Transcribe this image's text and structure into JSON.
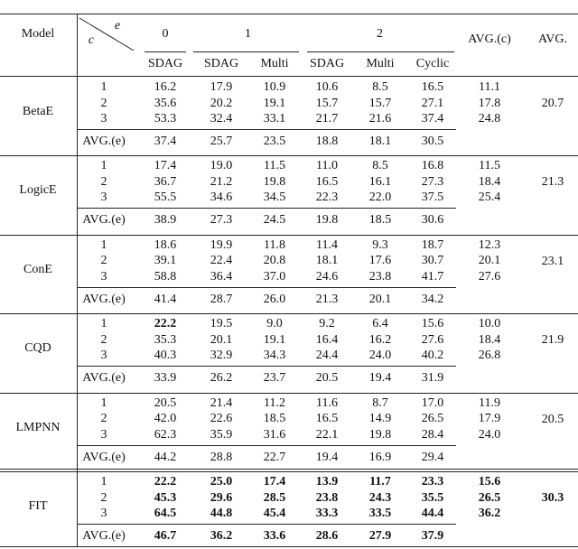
{
  "header": {
    "model": "Model",
    "e": "e",
    "c": "c",
    "groups": [
      {
        "label": "0",
        "cols": [
          "SDAG"
        ]
      },
      {
        "label": "1",
        "cols": [
          "SDAG",
          "Multi"
        ]
      },
      {
        "label": "2",
        "cols": [
          "SDAG",
          "Multi",
          "Cyclic"
        ]
      }
    ],
    "avg_c": "AVG.(c)",
    "avg": "AVG."
  },
  "models": [
    {
      "name": "BetaE",
      "bold": false,
      "rows": [
        {
          "c": "1",
          "values": [
            "16.2",
            "17.9",
            "10.9",
            "10.6",
            "8.5",
            "16.5"
          ],
          "avg_c": "11.1"
        },
        {
          "c": "2",
          "values": [
            "35.6",
            "20.2",
            "19.1",
            "15.7",
            "15.7",
            "27.1"
          ],
          "avg_c": "17.8"
        },
        {
          "c": "3",
          "values": [
            "53.3",
            "32.4",
            "33.1",
            "21.7",
            "21.6",
            "37.4"
          ],
          "avg_c": "24.8"
        }
      ],
      "avg_e_label": "AVG.(e)",
      "avg_e": [
        "37.4",
        "25.7",
        "23.5",
        "18.8",
        "18.1",
        "30.5"
      ],
      "avg": "20.7"
    },
    {
      "name": "LogicE",
      "bold": false,
      "rows": [
        {
          "c": "1",
          "values": [
            "17.4",
            "19.0",
            "11.5",
            "11.0",
            "8.5",
            "16.8"
          ],
          "avg_c": "11.5"
        },
        {
          "c": "2",
          "values": [
            "36.7",
            "21.2",
            "19.8",
            "16.5",
            "16.1",
            "27.3"
          ],
          "avg_c": "18.4"
        },
        {
          "c": "3",
          "values": [
            "55.5",
            "34.6",
            "34.5",
            "22.3",
            "22.0",
            "37.5"
          ],
          "avg_c": "25.4"
        }
      ],
      "avg_e_label": "AVG.(e)",
      "avg_e": [
        "38.9",
        "27.3",
        "24.5",
        "19.8",
        "18.5",
        "30.6"
      ],
      "avg": "21.3"
    },
    {
      "name": "ConE",
      "bold": false,
      "rows": [
        {
          "c": "1",
          "values": [
            "18.6",
            "19.9",
            "11.8",
            "11.4",
            "9.3",
            "18.7"
          ],
          "avg_c": "12.3"
        },
        {
          "c": "2",
          "values": [
            "39.1",
            "22.4",
            "20.8",
            "18.1",
            "17.6",
            "30.7"
          ],
          "avg_c": "20.1"
        },
        {
          "c": "3",
          "values": [
            "58.8",
            "36.4",
            "37.0",
            "24.6",
            "23.8",
            "41.7"
          ],
          "avg_c": "27.6"
        }
      ],
      "avg_e_label": "AVG.(e)",
      "avg_e": [
        "41.4",
        "28.7",
        "26.0",
        "21.3",
        "20.1",
        "34.2"
      ],
      "avg": "23.1"
    },
    {
      "name": "CQD",
      "bold": false,
      "rows": [
        {
          "c": "1",
          "values": [
            {
              "text": "22.2",
              "bold": true
            },
            "19.5",
            "9.0",
            "9.2",
            "6.4",
            "15.6"
          ],
          "avg_c": "10.0"
        },
        {
          "c": "2",
          "values": [
            "35.3",
            "20.1",
            "19.1",
            "16.4",
            "16.2",
            "27.6"
          ],
          "avg_c": "18.4"
        },
        {
          "c": "3",
          "values": [
            "40.3",
            "32.9",
            "34.3",
            "24.4",
            "24.0",
            "40.2"
          ],
          "avg_c": "26.8"
        }
      ],
      "avg_e_label": "AVG.(e)",
      "avg_e": [
        "33.9",
        "26.2",
        "23.7",
        "20.5",
        "19.4",
        "31.9"
      ],
      "avg": "21.9"
    },
    {
      "name": "LMPNN",
      "bold": false,
      "rows": [
        {
          "c": "1",
          "values": [
            "20.5",
            "21.4",
            "11.2",
            "11.6",
            "8.7",
            "17.0"
          ],
          "avg_c": "11.9"
        },
        {
          "c": "2",
          "values": [
            "42.0",
            "22.6",
            "18.5",
            "16.5",
            "14.9",
            "26.5"
          ],
          "avg_c": "17.9"
        },
        {
          "c": "3",
          "values": [
            "62.3",
            "35.9",
            "31.6",
            "22.1",
            "19.8",
            "28.4"
          ],
          "avg_c": "24.0"
        }
      ],
      "avg_e_label": "AVG.(e)",
      "avg_e": [
        "44.2",
        "28.8",
        "22.7",
        "19.4",
        "16.9",
        "29.4"
      ],
      "avg": "20.5"
    },
    {
      "name": "FIT",
      "bold": true,
      "rows": [
        {
          "c": "1",
          "values": [
            "22.2",
            "25.0",
            "17.4",
            "13.9",
            "11.7",
            "23.3"
          ],
          "avg_c": "15.6"
        },
        {
          "c": "2",
          "values": [
            "45.3",
            "29.6",
            "28.5",
            "23.8",
            "24.3",
            "35.5"
          ],
          "avg_c": "26.5"
        },
        {
          "c": "3",
          "values": [
            "64.5",
            "44.8",
            "45.4",
            "33.3",
            "33.5",
            "44.4"
          ],
          "avg_c": "36.2"
        }
      ],
      "avg_e_label": "AVG.(e)",
      "avg_e": [
        "46.7",
        "36.2",
        "33.6",
        "28.6",
        "27.9",
        "37.9"
      ],
      "avg": "30.3"
    }
  ]
}
